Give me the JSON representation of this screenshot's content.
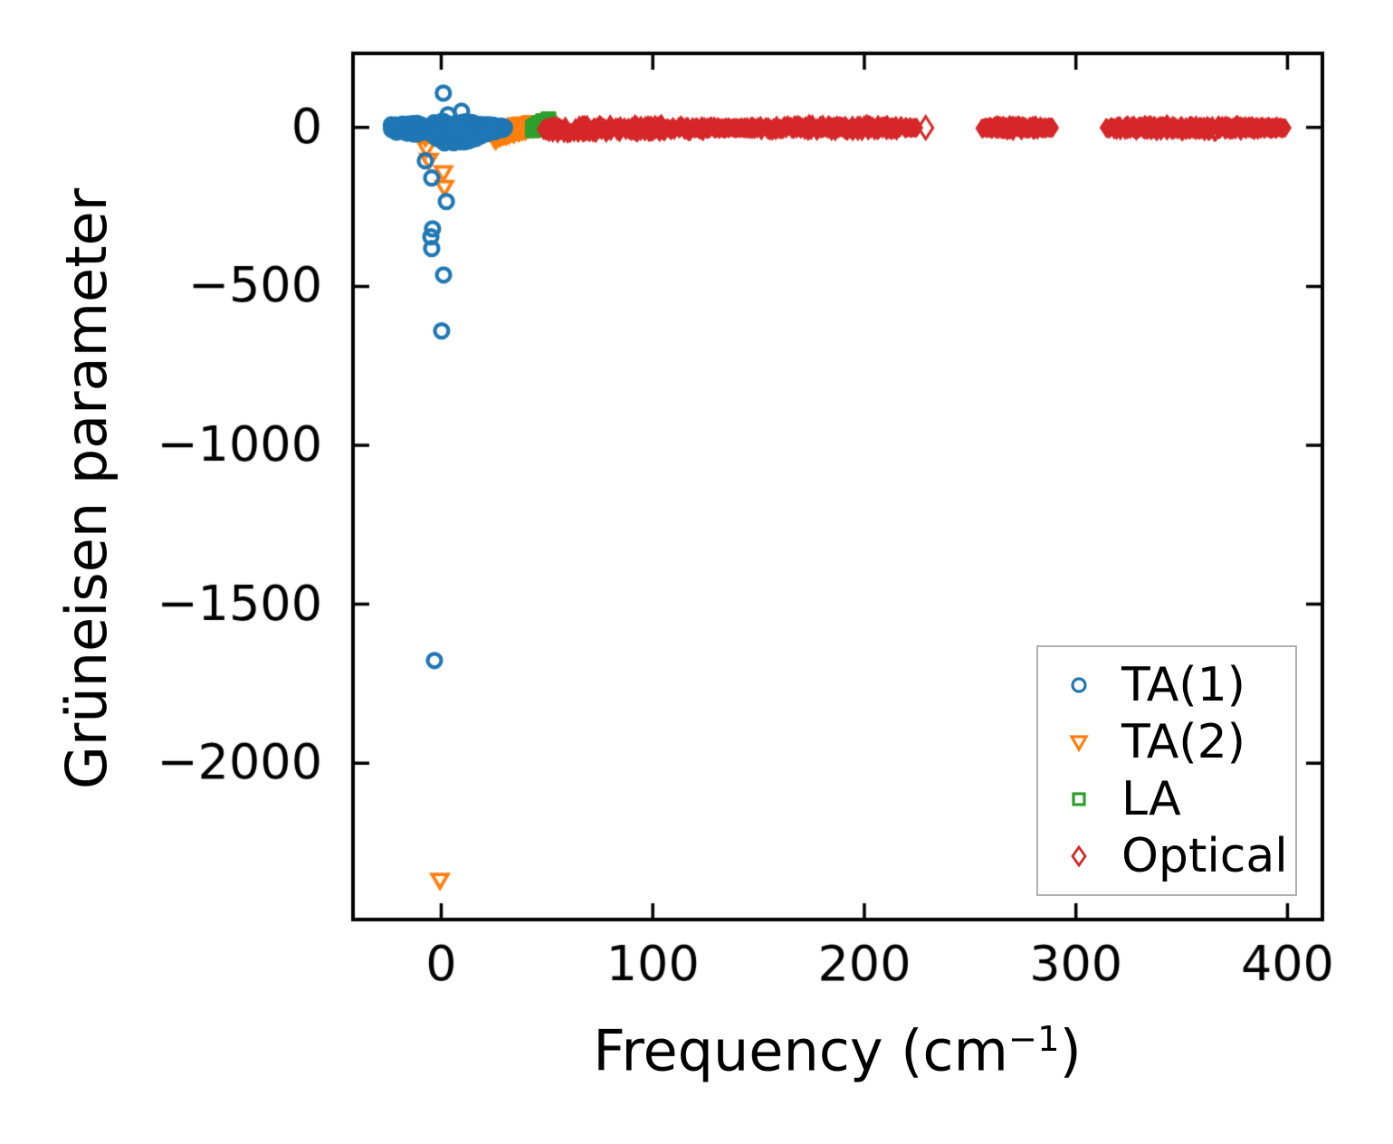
{
  "figure": {
    "background": "#ffffff"
  },
  "chart_data": {
    "type": "scatter",
    "title": "",
    "xlabel": "Frequency (cm⁻¹)",
    "xlabel_parts": {
      "prefix": "Frequency (cm",
      "sup": "−1",
      "suffix": ")"
    },
    "ylabel": "Grüneisen parameter",
    "xlim": [
      -41.7,
      416.5
    ],
    "ylim": [
      -2492,
      233
    ],
    "xticks": [
      0,
      100,
      200,
      300,
      400
    ],
    "yticks": [
      0,
      -500,
      -1000,
      -1500,
      -2000
    ],
    "grid": false,
    "tick_direction": "in",
    "axis_color": "#000000",
    "legend": {
      "position": "lower right",
      "border_color": "#b0b0b0",
      "text_color": "#000000"
    },
    "series": [
      {
        "name": "TA(1)",
        "marker": "circle",
        "color": "#1f77b4",
        "size": 15,
        "line_width": 4.2,
        "bands": [
          {
            "path": [
              [
                -23.7,
                0,
                10
              ],
              [
                -18,
                -3,
                18
              ],
              [
                -12,
                -4,
                20
              ],
              [
                -7,
                -6,
                16
              ]
            ],
            "count": 220
          },
          {
            "path": [
              [
                -4,
                -8,
                26
              ],
              [
                2,
                -15,
                40
              ],
              [
                8,
                -16,
                42
              ],
              [
                14,
                -12,
                34
              ],
              [
                20,
                -8,
                22
              ],
              [
                26,
                -3,
                10
              ],
              [
                30,
                -2,
                6
              ]
            ],
            "count": 520
          }
        ],
        "points": [
          [
            1,
            108
          ],
          [
            9.6,
            51
          ],
          [
            3.2,
            40
          ],
          [
            -7.5,
            -105
          ],
          [
            -4.5,
            -159
          ],
          [
            2.4,
            -233
          ],
          [
            -4.1,
            -319
          ],
          [
            -4.9,
            -344
          ],
          [
            -4.5,
            -381
          ],
          [
            1.1,
            -464
          ],
          [
            0.2,
            -640
          ],
          [
            -3.2,
            -1677
          ]
        ]
      },
      {
        "name": "TA(2)",
        "marker": "triangle-down",
        "color": "#ff7f0e",
        "size": 15,
        "line_width": 3.8,
        "bands": [
          {
            "path": [
              [
                25,
                -30,
                13
              ],
              [
                31,
                -12,
                15
              ],
              [
                38,
                0,
                14
              ],
              [
                44,
                8,
                10
              ]
            ],
            "count": 260
          }
        ],
        "points": [
          [
            -2.4,
            0
          ],
          [
            -8,
            -20
          ],
          [
            -7.5,
            -31
          ],
          [
            -7,
            -66
          ],
          [
            -5.8,
            -103
          ],
          [
            1,
            -142
          ],
          [
            1.5,
            -188
          ],
          [
            -0.6,
            -2368
          ]
        ]
      },
      {
        "name": "LA",
        "marker": "square",
        "color": "#2ca02c",
        "size": 13,
        "line_width": 3.6,
        "bands": [
          {
            "path": [
              [
                43,
                -5,
                10
              ],
              [
                47,
                8,
                11
              ],
              [
                51,
                22,
                7
              ]
            ],
            "count": 150
          }
        ],
        "points": [
          [
            -4,
            2
          ]
        ]
      },
      {
        "name": "Optical",
        "marker": "diamond",
        "color": "#d62728",
        "size": 13,
        "line_width": 3.0,
        "points_size": 20,
        "bands": [
          {
            "path": [
              [
                48,
                -6,
                4
              ],
              [
                52,
                -6,
                16
              ],
              [
                70,
                -5,
                19
              ],
              [
                100,
                -4,
                18
              ],
              [
                125,
                -3,
                11
              ],
              [
                138,
                -2,
                3
              ],
              [
                152,
                -2,
                11
              ],
              [
                175,
                -1,
                16
              ],
              [
                205,
                -1,
                16
              ],
              [
                218,
                -1,
                10
              ],
              [
                225,
                -1,
                2
              ]
            ],
            "count": 620
          },
          {
            "path": [
              [
                255,
                -2,
                2
              ],
              [
                259,
                -2,
                10
              ],
              [
                268,
                -1,
                15
              ],
              [
                280,
                -1,
                12
              ],
              [
                286,
                -1,
                6
              ],
              [
                289,
                -1,
                2
              ]
            ],
            "count": 160
          },
          {
            "path": [
              [
                314,
                -1,
                2
              ],
              [
                319,
                -1,
                10
              ],
              [
                335,
                -1,
                15
              ],
              [
                365,
                -1,
                16
              ],
              [
                388,
                -1,
                11
              ],
              [
                396,
                -1,
                6
              ],
              [
                399,
                -1,
                2
              ]
            ],
            "count": 340
          }
        ],
        "points": [
          [
            229,
            -1
          ]
        ]
      }
    ]
  }
}
